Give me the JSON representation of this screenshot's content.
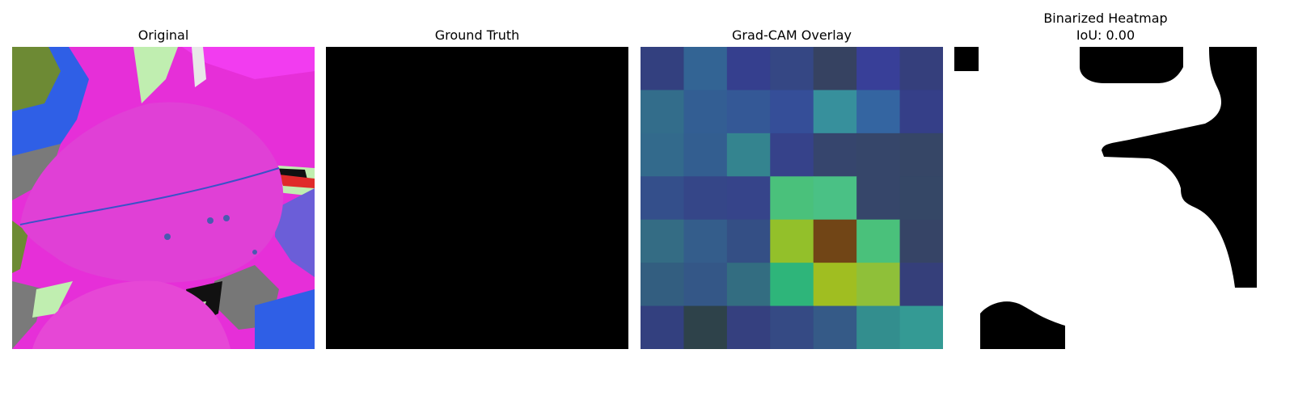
{
  "panels": [
    {
      "title": "Original"
    },
    {
      "title": "Ground Truth"
    },
    {
      "title": "Grad-CAM Overlay"
    },
    {
      "title": "Binarized Heatmap",
      "subtitle": "IoU: 0.00"
    }
  ],
  "gradcam": {
    "cells": [
      [
        "#33407f",
        "#336494",
        "#353f8e",
        "#354784",
        "#364261",
        "#383f98",
        "#353f7c"
      ],
      [
        "#336d8b",
        "#335e93",
        "#345896",
        "#354e98",
        "#37909c",
        "#3465a1",
        "#353f88"
      ],
      [
        "#336a8c",
        "#335e90",
        "#34848f",
        "#36428a",
        "#36456d",
        "#36466a",
        "#364666"
      ],
      [
        "#344f8b",
        "#354688",
        "#36448a",
        "#4ac17b",
        "#4ac185",
        "#36466a",
        "#354766"
      ],
      [
        "#346c84",
        "#345d8b",
        "#344f85",
        "#93c02a",
        "#714516",
        "#4ac17b",
        "#364466"
      ],
      [
        "#335e80",
        "#345787",
        "#336d81",
        "#2eb57a",
        "#a0be21",
        "#8fc039",
        "#353f7a"
      ],
      [
        "#33407f",
        "#2e424a",
        "#35407f",
        "#354a84",
        "#355a87",
        "#338e8e",
        "#349a94"
      ]
    ]
  },
  "colors": {
    "background": "#ffffff",
    "mask_on": "#ffffff",
    "mask_off": "#000000",
    "ground_truth": "#000000"
  }
}
